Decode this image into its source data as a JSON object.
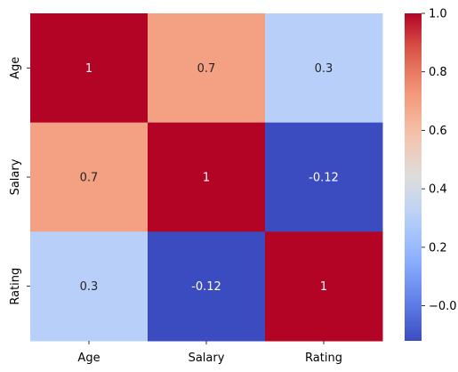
{
  "chart_data": {
    "type": "heatmap",
    "title": "",
    "xlabel": "",
    "ylabel": "",
    "x_categories": [
      "Age",
      "Salary",
      "Rating"
    ],
    "y_categories": [
      "Age",
      "Salary",
      "Rating"
    ],
    "values": [
      [
        1,
        0.7,
        0.3
      ],
      [
        0.7,
        1,
        -0.12
      ],
      [
        0.3,
        -0.12,
        1
      ]
    ],
    "annotations": [
      [
        "1",
        "0.7",
        "0.3"
      ],
      [
        "0.7",
        "1",
        "-0.12"
      ],
      [
        "0.3",
        "-0.12",
        "1"
      ]
    ],
    "colormap": "coolwarm",
    "vmin": -0.12,
    "vmax": 1.0,
    "colorbar_ticks": [
      1.0,
      0.8,
      0.6,
      0.4,
      0.2,
      0.0
    ],
    "colorbar_tick_labels": [
      "1.0",
      "0.8",
      "0.6",
      "0.4",
      "0.2",
      "−0.0"
    ]
  }
}
